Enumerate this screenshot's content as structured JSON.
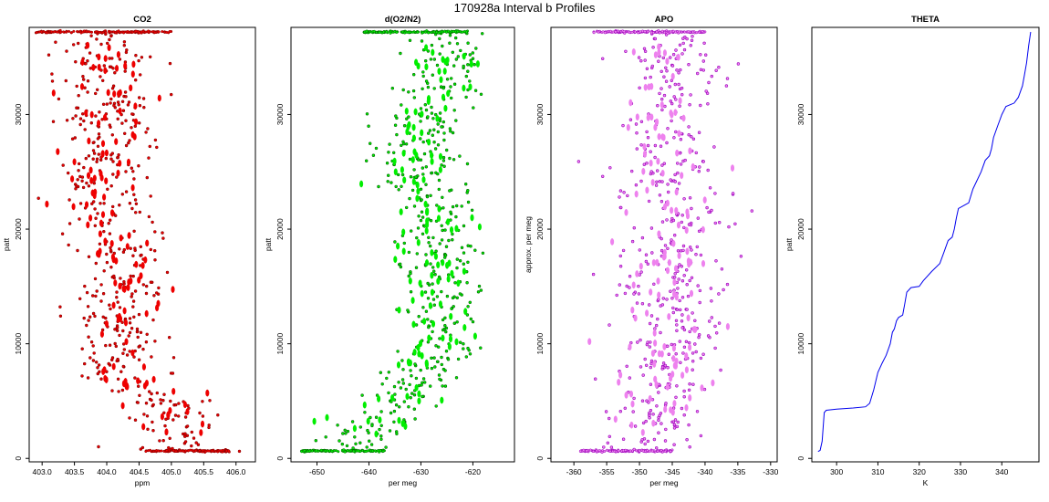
{
  "figure": {
    "title": "170928a   Interval b Profiles"
  },
  "chart_data": [
    {
      "type": "scatter",
      "title": "CO2",
      "xlabel": "ppm",
      "ylabel": "patt",
      "xlim": [
        402.8,
        406.3
      ],
      "ylim": [
        -300,
        37600
      ],
      "xticks": [
        "403.0",
        "403.5",
        "404.0",
        "404.5",
        "405.0",
        "405.5",
        "406.0"
      ],
      "xtick_values": [
        403.0,
        403.5,
        404.0,
        404.5,
        405.0,
        405.5,
        406.0
      ],
      "yticks": [
        "0",
        "10000",
        "20000",
        "30000"
      ],
      "ytick_values": [
        0,
        10000,
        20000,
        30000
      ],
      "grid": false,
      "series": [
        {
          "color": "#ee0000",
          "edge": "#880000",
          "y_min": 600,
          "y_max": 37200,
          "trend": [
            [
              600,
              405.1
            ],
            [
              3000,
              405.05
            ],
            [
              5000,
              404.8
            ],
            [
              7000,
              404.2
            ],
            [
              9000,
              404.1
            ],
            [
              11000,
              404.2
            ],
            [
              13000,
              404.1
            ],
            [
              15000,
              404.3
            ],
            [
              17000,
              404.1
            ],
            [
              19000,
              404.3
            ],
            [
              21000,
              404.0
            ],
            [
              23000,
              403.95
            ],
            [
              25000,
              403.95
            ],
            [
              27000,
              404.0
            ],
            [
              29000,
              404.0
            ],
            [
              31000,
              404.1
            ],
            [
              33000,
              403.9
            ],
            [
              35000,
              404.0
            ],
            [
              37200,
              404.0
            ]
          ],
          "spread": 0.35,
          "top_band": [
            402.9,
            405.0
          ],
          "bottom_band": [
            404.6,
            405.9
          ]
        }
      ]
    },
    {
      "type": "scatter",
      "title": "d(O2/N2)",
      "xlabel": "per meg",
      "ylabel": "patt",
      "xlim": [
        -655,
        -612
      ],
      "ylim": [
        -300,
        37600
      ],
      "xticks": [
        "-650",
        "-640",
        "-630",
        "-620"
      ],
      "xtick_values": [
        -650,
        -640,
        -630,
        -620
      ],
      "yticks": [
        "0",
        "10000",
        "20000",
        "30000"
      ],
      "ytick_values": [
        0,
        10000,
        20000,
        30000
      ],
      "grid": false,
      "series": [
        {
          "color": "#00ee00",
          "edge": "#006600",
          "y_min": 600,
          "y_max": 37200,
          "trend": [
            [
              600,
              -641
            ],
            [
              2000,
              -641
            ],
            [
              4000,
              -637
            ],
            [
              6000,
              -632
            ],
            [
              8000,
              -629
            ],
            [
              10000,
              -626
            ],
            [
              12000,
              -627
            ],
            [
              14000,
              -627
            ],
            [
              16000,
              -628
            ],
            [
              18000,
              -627
            ],
            [
              20000,
              -626
            ],
            [
              22000,
              -628
            ],
            [
              24000,
              -631
            ],
            [
              26000,
              -630
            ],
            [
              28000,
              -631
            ],
            [
              30000,
              -630
            ],
            [
              32000,
              -625
            ],
            [
              34000,
              -625
            ],
            [
              36000,
              -625
            ],
            [
              37200,
              -627
            ]
          ],
          "spread": 4.0,
          "top_band": [
            -641,
            -621
          ],
          "bottom_band": [
            -653,
            -637
          ]
        }
      ]
    },
    {
      "type": "scatter",
      "title": "APO",
      "xlabel": "per meg",
      "ylabel": "approx. per meg",
      "xlim": [
        -363.5,
        -329
      ],
      "ylim": [
        -300,
        37600
      ],
      "xticks": [
        "-360",
        "-355",
        "-350",
        "-345",
        "-340",
        "-335",
        "-330"
      ],
      "xtick_values": [
        -360,
        -355,
        -350,
        -345,
        -340,
        -335,
        -330
      ],
      "yticks": [
        "0",
        "10000",
        "20000",
        "30000"
      ],
      "ytick_values": [
        0,
        10000,
        20000,
        30000
      ],
      "grid": false,
      "series": [
        {
          "color": "#ee82ee",
          "edge": "#9900bb",
          "y_min": 600,
          "y_max": 37200,
          "trend": [
            [
              600,
              -348
            ],
            [
              4000,
              -347
            ],
            [
              8000,
              -346
            ],
            [
              12000,
              -345
            ],
            [
              16000,
              -345
            ],
            [
              20000,
              -345
            ],
            [
              24000,
              -346
            ],
            [
              28000,
              -346
            ],
            [
              32000,
              -345
            ],
            [
              36000,
              -345
            ],
            [
              37200,
              -348
            ]
          ],
          "spread": 4.0,
          "top_band": [
            -357,
            -340
          ],
          "bottom_band": [
            -359,
            -345
          ]
        }
      ]
    },
    {
      "type": "line",
      "title": "THETA",
      "xlabel": "K",
      "ylabel": "patt",
      "xlim": [
        294,
        349
      ],
      "ylim": [
        -300,
        37600
      ],
      "xticks": [
        "300",
        "310",
        "320",
        "330",
        "340"
      ],
      "xtick_values": [
        300,
        310,
        320,
        330,
        340
      ],
      "yticks": [
        "0",
        "10000",
        "20000",
        "30000"
      ],
      "ytick_values": [
        0,
        10000,
        20000,
        30000
      ],
      "grid": false,
      "series": [
        {
          "color": "#0000ee",
          "points": [
            [
              295.5,
              600
            ],
            [
              296,
              700
            ],
            [
              296.5,
              1500
            ],
            [
              297,
              4000
            ],
            [
              297.5,
              4200
            ],
            [
              300,
              4300
            ],
            [
              304,
              4400
            ],
            [
              307,
              4500
            ],
            [
              308,
              4800
            ],
            [
              309,
              6000
            ],
            [
              310,
              7500
            ],
            [
              311,
              8300
            ],
            [
              312,
              9000
            ],
            [
              313,
              10000
            ],
            [
              313.5,
              11000
            ],
            [
              314,
              11300
            ],
            [
              314.5,
              12000
            ],
            [
              315,
              12300
            ],
            [
              316,
              12500
            ],
            [
              316.5,
              13500
            ],
            [
              317,
              14500
            ],
            [
              318,
              14900
            ],
            [
              320,
              15000
            ],
            [
              321,
              15500
            ],
            [
              323,
              16300
            ],
            [
              325,
              17000
            ],
            [
              326,
              18000
            ],
            [
              327,
              19000
            ],
            [
              328,
              19300
            ],
            [
              328.5,
              20000
            ],
            [
              329,
              21000
            ],
            [
              329.5,
              21800
            ],
            [
              331,
              22100
            ],
            [
              332,
              22300
            ],
            [
              333,
              23500
            ],
            [
              335,
              25000
            ],
            [
              336,
              26000
            ],
            [
              337,
              26400
            ],
            [
              337.5,
              27000
            ],
            [
              338,
              28000
            ],
            [
              339,
              29000
            ],
            [
              340,
              30000
            ],
            [
              341,
              30700
            ],
            [
              343,
              31000
            ],
            [
              344,
              31500
            ],
            [
              345,
              32500
            ],
            [
              345.5,
              33500
            ],
            [
              346,
              34500
            ],
            [
              346.5,
              36000
            ],
            [
              347,
              37200
            ]
          ]
        }
      ]
    }
  ]
}
